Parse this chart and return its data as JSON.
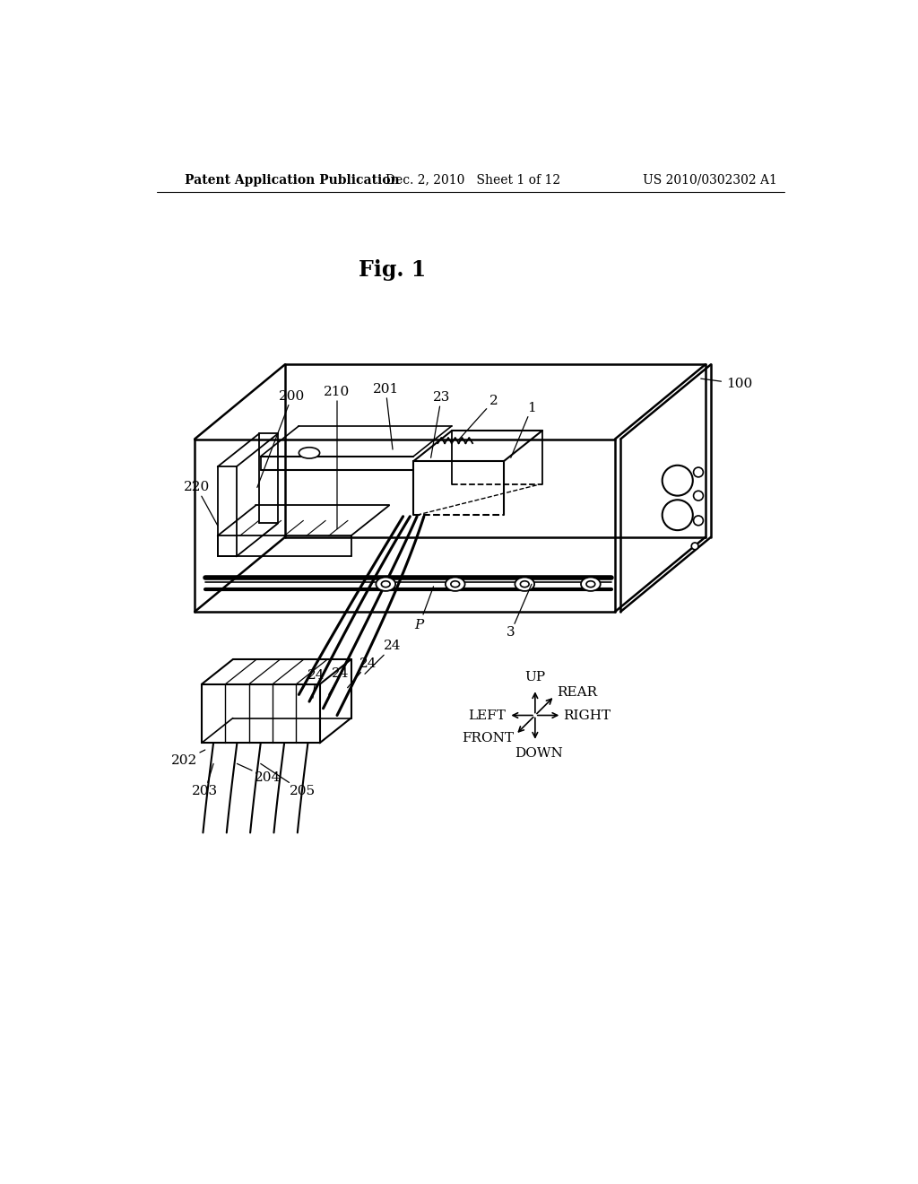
{
  "bg_color": "#ffffff",
  "title": "Fig. 1",
  "header_left": "Patent Application Publication",
  "header_mid": "Dec. 2, 2010   Sheet 1 of 12",
  "header_right": "US 2010/0302302 A1",
  "fig_width": 10.24,
  "fig_height": 13.2
}
